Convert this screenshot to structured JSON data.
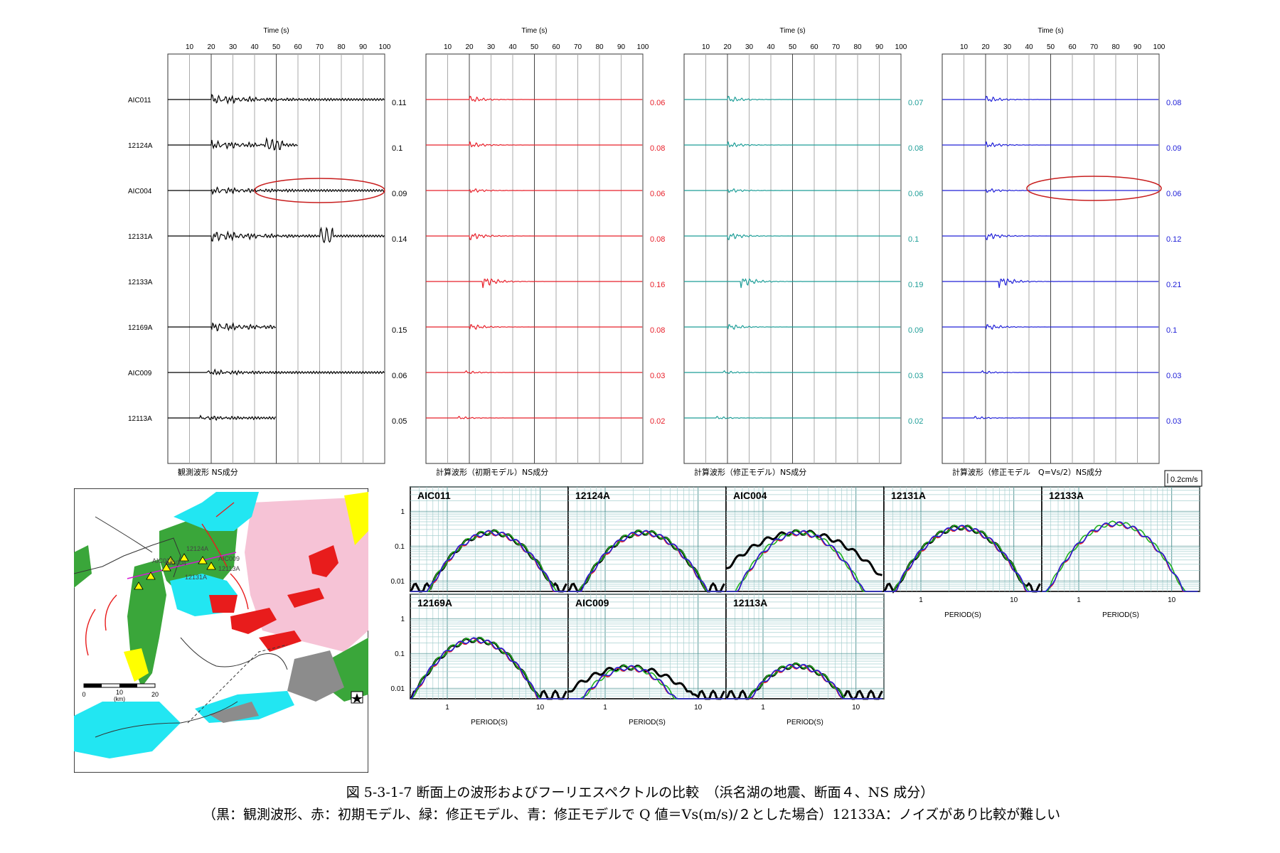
{
  "waveform_section": {
    "time_axis_label": "Time (s)",
    "time_ticks": [
      10,
      20,
      30,
      40,
      50,
      60,
      70,
      80,
      90,
      100
    ],
    "stations": [
      "AIC011",
      "12124A",
      "AIC004",
      "12131A",
      "12133A",
      "12169A",
      "AIC009",
      "12113A"
    ],
    "scale_bar_label": "0.2cm/s",
    "panels": [
      {
        "title": "観測波形 NS成分",
        "color": "#000000",
        "peaks": [
          "0.11",
          "0.1",
          "0.09",
          "0.14",
          "",
          "0.15",
          "0.06",
          "0.05"
        ]
      },
      {
        "title": "計算波形（初期モデル）NS成分",
        "color": "#e8202a",
        "peaks": [
          "0.06",
          "0.08",
          "0.06",
          "0.08",
          "0.16",
          "0.08",
          "0.03",
          "0.02"
        ]
      },
      {
        "title": "計算波形（修正モデル）NS成分",
        "color": "#1e9e98",
        "peaks": [
          "0.07",
          "0.08",
          "0.06",
          "0.1",
          "0.19",
          "0.09",
          "0.03",
          "0.02"
        ]
      },
      {
        "title": "計算波形（修正モデル　Q=Vs/2）NS成分",
        "color": "#2020d8",
        "peaks": [
          "0.08",
          "0.09",
          "0.06",
          "0.12",
          "0.21",
          "0.1",
          "0.03",
          "0.03"
        ]
      }
    ]
  },
  "spectra_section": {
    "x_axis_label": "PERIOD(S)",
    "x_ticks": [
      "1",
      "10"
    ],
    "y_ticks": [
      "1",
      "0.1",
      "0.01"
    ],
    "panels": [
      "AIC011",
      "12124A",
      "AIC004",
      "12131A",
      "12133A",
      "12169A",
      "AIC009",
      "12113A"
    ],
    "series_colors": {
      "observed": "#000000",
      "initial": "#e8202a",
      "modified": "#20b020",
      "modified_q": "#2020d8"
    }
  },
  "map": {
    "station_labels": [
      "AIC011",
      "AIC004",
      "12124A",
      "12131A",
      "AIC009",
      "12113A"
    ],
    "scale_ticks": [
      "0",
      "10",
      "20"
    ],
    "scale_unit": "(km)"
  },
  "caption": {
    "line1": "図 5-3-1-7 断面上の波形およびフーリエスペクトルの比較　（浜名湖の地震、断面４、NS 成分）",
    "line2": "（黒：観測波形、赤：初期モデル、緑：修正モデル、青：修正モデルで Q 値＝Vs(m/s)/２とした場合）12133A：ノイズがあり比較が難しい"
  }
}
